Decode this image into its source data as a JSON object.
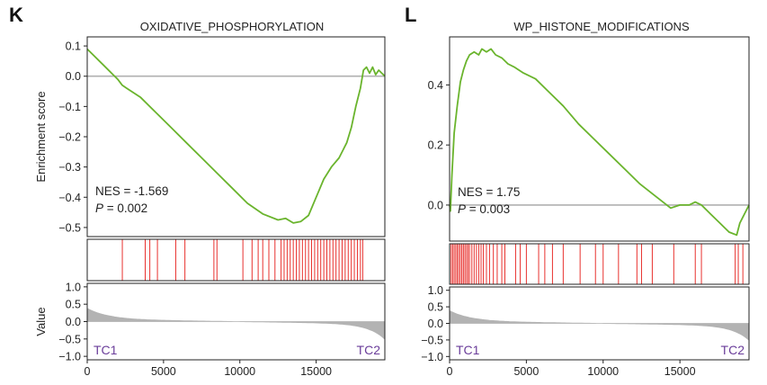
{
  "colors": {
    "curve": "#6ab42d",
    "hits": "#e8312e",
    "ranked": "#b3b3b3",
    "zero_line": "#b0b0b0",
    "tc_label": "#6a3d9a"
  },
  "chart_data": [
    {
      "type": "line",
      "panel_label": "K",
      "title": "OXIDATIVE_PHOSPHORYLATION",
      "ylabel": "Enrichment score",
      "value_ylabel": "Value",
      "xlim": [
        0,
        19500
      ],
      "ylim": [
        -0.53,
        0.13
      ],
      "yticks": [
        0.1,
        0.0,
        -0.1,
        -0.2,
        -0.3,
        -0.4,
        -0.5
      ],
      "ytick_labels": [
        "0.1",
        "0.0",
        "−0.1",
        "−0.2",
        "−0.3",
        "−0.4",
        "−0.5"
      ],
      "xticks": [
        0,
        5000,
        10000,
        15000
      ],
      "xtick_labels": [
        "0",
        "5000",
        "10000",
        "15000"
      ],
      "value_ylim": [
        -1.1,
        1.1
      ],
      "value_yticks": [
        1.0,
        0.5,
        0.0,
        -0.5,
        -1.0
      ],
      "value_ytick_labels": [
        "1.0",
        "0.5",
        "0.0",
        "−0.5",
        "−1.0"
      ],
      "nes_label": "NES = -1.569",
      "p_symbol": "P",
      "p_text": " = 0.002",
      "tc_left": "TC1",
      "tc_right": "TC2",
      "enrichment_curve": {
        "x": [
          0,
          1000,
          2000,
          2300,
          2600,
          3500,
          4500,
          5500,
          6500,
          7500,
          8500,
          9500,
          10500,
          11500,
          12500,
          13000,
          13500,
          14000,
          14500,
          15000,
          15500,
          16000,
          16500,
          17000,
          17300,
          17600,
          17900,
          18100,
          18300,
          18500,
          18700,
          18900,
          19100,
          19300,
          19500
        ],
        "y": [
          0.09,
          0.04,
          -0.01,
          -0.03,
          -0.04,
          -0.07,
          -0.12,
          -0.17,
          -0.22,
          -0.27,
          -0.32,
          -0.37,
          -0.42,
          -0.455,
          -0.475,
          -0.47,
          -0.485,
          -0.48,
          -0.46,
          -0.4,
          -0.34,
          -0.3,
          -0.27,
          -0.22,
          -0.17,
          -0.1,
          -0.04,
          0.02,
          0.03,
          0.01,
          0.03,
          0.005,
          0.02,
          0.01,
          0.0
        ]
      },
      "hits": [
        2300,
        3800,
        4100,
        4600,
        5800,
        6400,
        8300,
        8500,
        10200,
        10800,
        11200,
        11500,
        11900,
        12300,
        12700,
        12900,
        13100,
        13300,
        13500,
        13700,
        13900,
        14100,
        14300,
        14500,
        14700,
        14900,
        15100,
        15300,
        15500,
        15700,
        15900,
        16100,
        16300,
        16500,
        16700,
        16900,
        17100,
        17300,
        17500,
        17700,
        17900,
        18050
      ]
    },
    {
      "type": "line",
      "panel_label": "L",
      "title": "WP_HISTONE_MODIFICATIONS",
      "ylabel": "",
      "value_ylabel": "",
      "xlim": [
        0,
        19500
      ],
      "ylim": [
        -0.12,
        0.56
      ],
      "yticks": [
        0.4,
        0.2,
        0.0
      ],
      "ytick_labels": [
        "0.4",
        "0.2",
        "0.0"
      ],
      "xticks": [
        0,
        5000,
        10000,
        15000
      ],
      "xtick_labels": [
        "0",
        "5000",
        "10000",
        "15000"
      ],
      "value_ylim": [
        -1.1,
        1.1
      ],
      "value_yticks": [
        1.0,
        0.5,
        0.0,
        -0.5,
        -1.0
      ],
      "value_ytick_labels": [
        "1.0",
        "0.5",
        "0.0",
        "−0.5",
        "−1.0"
      ],
      "nes_label": "NES = 1.75",
      "p_symbol": "P",
      "p_text": " = 0.003",
      "tc_left": "TC1",
      "tc_right": "TC2",
      "enrichment_curve": {
        "x": [
          0,
          50,
          150,
          300,
          500,
          700,
          900,
          1100,
          1300,
          1600,
          1900,
          2100,
          2400,
          2700,
          3000,
          3400,
          3800,
          4200,
          4800,
          5600,
          6400,
          7400,
          8400,
          9400,
          10400,
          11400,
          12400,
          13400,
          14400,
          15000,
          15600,
          16000,
          16400,
          17000,
          17600,
          18200,
          18700,
          18900,
          19100,
          19300,
          19500
        ],
        "y": [
          0.0,
          -0.02,
          0.1,
          0.24,
          0.33,
          0.41,
          0.45,
          0.48,
          0.5,
          0.51,
          0.5,
          0.52,
          0.51,
          0.52,
          0.5,
          0.49,
          0.47,
          0.46,
          0.44,
          0.42,
          0.38,
          0.33,
          0.27,
          0.22,
          0.17,
          0.12,
          0.07,
          0.03,
          -0.01,
          0.0,
          0.0,
          0.01,
          0.0,
          -0.03,
          -0.06,
          -0.09,
          -0.1,
          -0.06,
          -0.04,
          -0.02,
          0.0
        ]
      },
      "hits": [
        100,
        200,
        300,
        400,
        500,
        600,
        700,
        800,
        900,
        1000,
        1100,
        1200,
        1300,
        1450,
        1600,
        1750,
        1900,
        2050,
        2200,
        2400,
        2600,
        2850,
        3100,
        3400,
        3600,
        4300,
        4600,
        5000,
        5800,
        6200,
        6700,
        7400,
        8500,
        9500,
        10000,
        11000,
        12200,
        12500,
        13200,
        14600,
        16000,
        16400,
        18600,
        18800,
        19100
      ]
    }
  ]
}
